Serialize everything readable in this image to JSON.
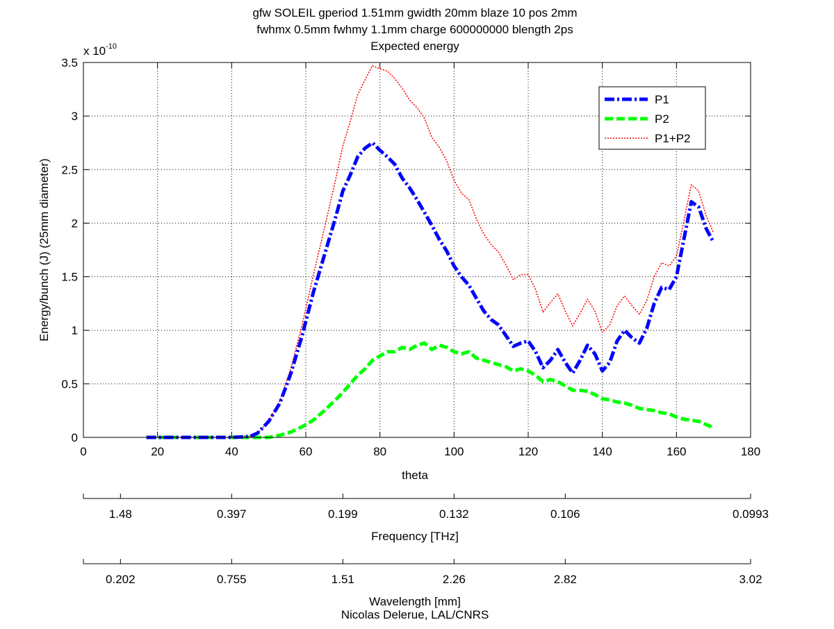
{
  "chart_data": {
    "type": "line",
    "title_lines": [
      "gfw SOLEIL gperiod 1.51mm gwidth 20mm blaze 10 pos 2mm",
      "fwhmx 0.5mm fwhmy 1.1mm charge 600000000 blength 2ps",
      "Expected energy"
    ],
    "xlabel": "theta",
    "ylabel": "Energy/bunch (J)  (25mm diameter)",
    "y_multiplier_base": "x 10",
    "y_multiplier_exp": "-10",
    "xlim": [
      0,
      180
    ],
    "ylim": [
      0,
      3.5
    ],
    "x_ticks": [
      0,
      20,
      40,
      60,
      80,
      100,
      120,
      140,
      160,
      180
    ],
    "x_tick_labels": [
      "0",
      "20",
      "40",
      "60",
      "80",
      "100",
      "120",
      "140",
      "160",
      "180"
    ],
    "y_ticks": [
      0,
      0.5,
      1,
      1.5,
      2,
      2.5,
      3,
      3.5
    ],
    "y_tick_labels": [
      "0",
      "0.5",
      "1",
      "1.5",
      "2",
      "2.5",
      "3",
      "3.5"
    ],
    "grid": true,
    "legend_position": "top-right",
    "x": [
      17,
      20,
      25,
      30,
      35,
      40,
      45,
      47,
      50,
      53,
      56,
      59,
      62,
      65,
      68,
      70,
      72,
      74,
      76,
      78,
      80,
      82,
      84,
      86,
      88,
      90,
      92,
      94,
      96,
      98,
      100,
      102,
      104,
      106,
      108,
      110,
      112,
      114,
      116,
      118,
      120,
      122,
      124,
      126,
      128,
      130,
      132,
      134,
      136,
      138,
      140,
      142,
      144,
      146,
      148,
      150,
      152,
      154,
      156,
      158,
      160,
      162,
      164,
      166,
      168,
      170
    ],
    "series": [
      {
        "name": "P1",
        "color": "#0000ff",
        "style": "dash-dot",
        "values": [
          0,
          0,
          0,
          0,
          0,
          0,
          0.01,
          0.04,
          0.15,
          0.32,
          0.6,
          0.95,
          1.35,
          1.7,
          2.05,
          2.3,
          2.45,
          2.62,
          2.7,
          2.75,
          2.68,
          2.62,
          2.55,
          2.42,
          2.33,
          2.22,
          2.1,
          1.98,
          1.85,
          1.74,
          1.6,
          1.5,
          1.42,
          1.3,
          1.18,
          1.1,
          1.05,
          0.95,
          0.85,
          0.88,
          0.9,
          0.8,
          0.65,
          0.72,
          0.82,
          0.7,
          0.6,
          0.72,
          0.86,
          0.78,
          0.62,
          0.7,
          0.9,
          1.0,
          0.93,
          0.88,
          1.02,
          1.25,
          1.4,
          1.38,
          1.5,
          1.85,
          2.2,
          2.15,
          1.95,
          1.82
        ]
      },
      {
        "name": "P2",
        "color": "#00ff00",
        "style": "dashed",
        "values": [
          0,
          0,
          0,
          0,
          0,
          0,
          0,
          0,
          0,
          0.02,
          0.05,
          0.1,
          0.16,
          0.25,
          0.35,
          0.42,
          0.5,
          0.58,
          0.64,
          0.72,
          0.76,
          0.8,
          0.8,
          0.84,
          0.82,
          0.86,
          0.88,
          0.82,
          0.86,
          0.84,
          0.8,
          0.78,
          0.8,
          0.74,
          0.72,
          0.7,
          0.68,
          0.66,
          0.62,
          0.64,
          0.62,
          0.58,
          0.52,
          0.54,
          0.52,
          0.48,
          0.44,
          0.44,
          0.43,
          0.4,
          0.36,
          0.35,
          0.33,
          0.32,
          0.3,
          0.27,
          0.26,
          0.25,
          0.23,
          0.22,
          0.19,
          0.17,
          0.16,
          0.15,
          0.12,
          0.09
        ]
      },
      {
        "name": "P1+P2",
        "color": "#ff0000",
        "style": "dotted",
        "values": [
          0,
          0,
          0,
          0,
          0,
          0,
          0.01,
          0.04,
          0.15,
          0.34,
          0.65,
          1.05,
          1.51,
          1.95,
          2.4,
          2.72,
          2.95,
          3.2,
          3.34,
          3.47,
          3.44,
          3.42,
          3.35,
          3.26,
          3.15,
          3.08,
          2.98,
          2.8,
          2.71,
          2.58,
          2.4,
          2.28,
          2.22,
          2.04,
          1.9,
          1.8,
          1.73,
          1.61,
          1.47,
          1.52,
          1.52,
          1.38,
          1.17,
          1.26,
          1.34,
          1.18,
          1.04,
          1.16,
          1.29,
          1.18,
          0.98,
          1.05,
          1.23,
          1.32,
          1.23,
          1.15,
          1.28,
          1.5,
          1.63,
          1.6,
          1.69,
          2.02,
          2.36,
          2.3,
          2.07,
          1.91
        ]
      }
    ],
    "secondary_axes": [
      {
        "label": "Frequency [THz]",
        "tick_labels": [
          "1.48",
          "0.397",
          "0.199",
          "0.132",
          "0.106",
          "0.0993"
        ],
        "tick_positions_theta": [
          10,
          40,
          70,
          100,
          130,
          160
        ]
      },
      {
        "label": "Wavelength [mm]",
        "tick_labels": [
          "0.202",
          "0.755",
          "1.51",
          "2.26",
          "2.82",
          "3.02"
        ],
        "tick_positions_theta": [
          10,
          40,
          70,
          100,
          130,
          160
        ]
      }
    ]
  },
  "footer": {
    "credit": "Nicolas Delerue, LAL/CNRS"
  }
}
